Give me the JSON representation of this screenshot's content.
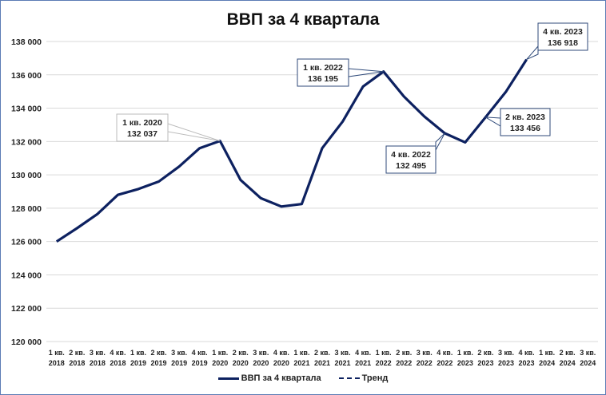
{
  "chart_data": {
    "type": "line",
    "title": "ВВП за 4 квартала",
    "xlabel": "",
    "ylabel": "",
    "ylim": [
      120000,
      138000
    ],
    "yticks": [
      120000,
      122000,
      124000,
      126000,
      128000,
      130000,
      132000,
      134000,
      136000,
      138000
    ],
    "ytick_labels": [
      "120 000",
      "122 000",
      "124 000",
      "126 000",
      "128 000",
      "130 000",
      "132 000",
      "134 000",
      "136 000",
      "138 000"
    ],
    "grid": true,
    "legend_position": "bottom",
    "categories": [
      [
        "1 кв.",
        "2018"
      ],
      [
        "2 кв.",
        "2018"
      ],
      [
        "3 кв.",
        "2018"
      ],
      [
        "4 кв.",
        "2018"
      ],
      [
        "1 кв.",
        "2019"
      ],
      [
        "2 кв.",
        "2019"
      ],
      [
        "3 кв.",
        "2019"
      ],
      [
        "4 кв.",
        "2019"
      ],
      [
        "1 кв.",
        "2020"
      ],
      [
        "2 кв.",
        "2020"
      ],
      [
        "3 кв.",
        "2020"
      ],
      [
        "4 кв.",
        "2020"
      ],
      [
        "1 кв.",
        "2021"
      ],
      [
        "2 кв.",
        "2021"
      ],
      [
        "3 кв.",
        "2021"
      ],
      [
        "4 кв.",
        "2021"
      ],
      [
        "1 кв.",
        "2022"
      ],
      [
        "2 кв.",
        "2022"
      ],
      [
        "3 кв.",
        "2022"
      ],
      [
        "4 кв.",
        "2022"
      ],
      [
        "1 кв.",
        "2023"
      ],
      [
        "2 кв.",
        "2023"
      ],
      [
        "3 кв.",
        "2023"
      ],
      [
        "4 кв.",
        "2023"
      ],
      [
        "1 кв.",
        "2024"
      ],
      [
        "2 кв.",
        "2024"
      ],
      [
        "3 кв.",
        "2024"
      ]
    ],
    "series": [
      {
        "name": "ВВП за 4 квартала",
        "color": "#0d2160",
        "style": "solid",
        "values": [
          126000,
          126800,
          127650,
          128800,
          129150,
          129600,
          130500,
          131600,
          132037,
          129700,
          128600,
          128100,
          128250,
          131600,
          133200,
          135300,
          136195,
          134700,
          133500,
          132495,
          131950,
          133456,
          135000,
          136918,
          null,
          null,
          null
        ]
      },
      {
        "name": "Тренд",
        "color": "#0d2160",
        "style": "dashed",
        "values": []
      }
    ],
    "annotations": [
      {
        "index": 8,
        "label": "1 кв. 2020",
        "value": "132 037",
        "border": "#bbbbbb"
      },
      {
        "index": 16,
        "label": "1 кв. 2022",
        "value": "136 195",
        "border": "#2f4a7a"
      },
      {
        "index": 19,
        "label": "4 кв. 2022",
        "value": "132 495",
        "border": "#2f4a7a"
      },
      {
        "index": 21,
        "label": "2 кв. 2023",
        "value": "133 456",
        "border": "#2f4a7a"
      },
      {
        "index": 23,
        "label": "4 кв. 2023",
        "value": "136 918",
        "border": "#2f4a7a"
      }
    ]
  },
  "legend": {
    "series1": "ВВП за 4 квартала",
    "series2": "Тренд"
  }
}
